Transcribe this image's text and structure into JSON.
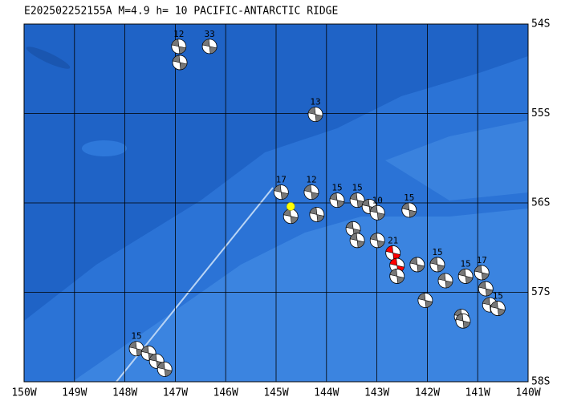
{
  "title": "E202502252155A  M=4.9  h= 10  PACIFIC-ANTARCTIC RIDGE",
  "map": {
    "xlim": [
      150,
      140
    ],
    "ylim": [
      54,
      58
    ],
    "xticks": [
      {
        "value": 150,
        "label": "150W"
      },
      {
        "value": 149,
        "label": "149W"
      },
      {
        "value": 148,
        "label": "148W"
      },
      {
        "value": 147,
        "label": "147W"
      },
      {
        "value": 146,
        "label": "146W"
      },
      {
        "value": 145,
        "label": "145W"
      },
      {
        "value": 144,
        "label": "144W"
      },
      {
        "value": 143,
        "label": "143W"
      },
      {
        "value": 142,
        "label": "142W"
      },
      {
        "value": 141,
        "label": "141W"
      },
      {
        "value": 140,
        "label": "140W"
      }
    ],
    "yticks": [
      {
        "value": 54,
        "label": "54S"
      },
      {
        "value": 55,
        "label": "55S"
      },
      {
        "value": 56,
        "label": "56S"
      },
      {
        "value": 57,
        "label": "57S"
      },
      {
        "value": 58,
        "label": "58S"
      }
    ],
    "grid": true,
    "epicenter": {
      "lon": 144.71,
      "lat": 56.04,
      "color": "#ffff00"
    },
    "events": [
      {
        "lon": 146.93,
        "lat": 54.25,
        "depth": 12,
        "color": "#777777"
      },
      {
        "lon": 146.91,
        "lat": 54.43,
        "color": "#777777"
      },
      {
        "lon": 146.32,
        "lat": 54.25,
        "depth": 33,
        "color": "#777777"
      },
      {
        "lon": 144.22,
        "lat": 55.01,
        "depth": 13,
        "color": "#777777"
      },
      {
        "lon": 144.9,
        "lat": 55.88,
        "depth": 17,
        "color": "#777777"
      },
      {
        "lon": 144.71,
        "lat": 56.15,
        "color": "#777777"
      },
      {
        "lon": 144.3,
        "lat": 55.88,
        "depth": 12,
        "color": "#777777"
      },
      {
        "lon": 144.19,
        "lat": 56.13,
        "color": "#777777"
      },
      {
        "lon": 143.79,
        "lat": 55.97,
        "depth": 15,
        "color": "#777777"
      },
      {
        "lon": 143.39,
        "lat": 55.97,
        "depth": 15,
        "color": "#777777"
      },
      {
        "lon": 143.15,
        "lat": 56.04,
        "color": "#777777"
      },
      {
        "lon": 142.99,
        "lat": 56.11,
        "depth": 10,
        "color": "#777777"
      },
      {
        "lon": 143.47,
        "lat": 56.29,
        "color": "#777777"
      },
      {
        "lon": 143.39,
        "lat": 56.42,
        "color": "#777777"
      },
      {
        "lon": 142.99,
        "lat": 56.42,
        "color": "#777777"
      },
      {
        "lon": 142.68,
        "lat": 56.56,
        "depth": 21,
        "color": "#ff0000"
      },
      {
        "lon": 142.6,
        "lat": 56.7,
        "color": "#ff0000"
      },
      {
        "lon": 142.36,
        "lat": 56.08,
        "depth": 15,
        "color": "#777777"
      },
      {
        "lon": 142.6,
        "lat": 56.82,
        "color": "#777777"
      },
      {
        "lon": 142.2,
        "lat": 56.69,
        "color": "#777777"
      },
      {
        "lon": 141.8,
        "lat": 56.69,
        "depth": 15,
        "color": "#777777"
      },
      {
        "lon": 142.04,
        "lat": 57.09,
        "color": "#777777"
      },
      {
        "lon": 141.64,
        "lat": 56.87,
        "color": "#777777"
      },
      {
        "lon": 141.24,
        "lat": 56.82,
        "depth": 15,
        "color": "#777777"
      },
      {
        "lon": 141.32,
        "lat": 57.27,
        "color": "#777777"
      },
      {
        "lon": 141.29,
        "lat": 57.32,
        "color": "#777777"
      },
      {
        "lon": 140.92,
        "lat": 56.78,
        "depth": 17,
        "color": "#777777"
      },
      {
        "lon": 140.84,
        "lat": 56.96,
        "color": "#777777"
      },
      {
        "lon": 140.76,
        "lat": 57.14,
        "color": "#777777"
      },
      {
        "lon": 140.6,
        "lat": 57.18,
        "depth": 15,
        "color": "#777777"
      },
      {
        "lon": 147.77,
        "lat": 57.63,
        "depth": 15,
        "color": "#777777"
      },
      {
        "lon": 147.53,
        "lat": 57.68,
        "color": "#777777"
      },
      {
        "lon": 147.37,
        "lat": 57.77,
        "color": "#777777"
      },
      {
        "lon": 147.21,
        "lat": 57.86,
        "color": "#777777"
      }
    ]
  }
}
